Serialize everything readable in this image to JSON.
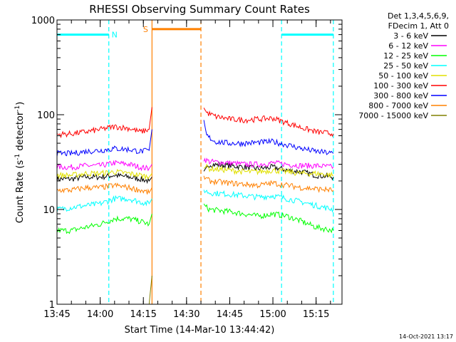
{
  "chart_data": {
    "type": "line",
    "title": "RHESSI Observing Summary Count Rates",
    "xlabel": "Start Time (14-Mar-10 13:44:42)",
    "ylabel_main": "Count Rate (s",
    "ylabel_sup1": "-1",
    "ylabel_mid": " detector",
    "ylabel_sup2": "-1",
    "ylabel_end": ")",
    "yscale": "log",
    "ylim": [
      1,
      1000
    ],
    "xlim": [
      "13:45",
      "15:24"
    ],
    "xticks": [
      "13:45",
      "14:00",
      "14:15",
      "14:30",
      "14:45",
      "15:00",
      "15:15"
    ],
    "yticks": [
      "1",
      "10",
      "100",
      "1000"
    ],
    "legend_header": [
      "Det 1,3,4,5,6,9,",
      "FDecim 1, Att 0"
    ],
    "series": [
      {
        "name": "3 - 6 keV",
        "color": "#000000",
        "segments": [
          {
            "x": [
              "13:45",
              "13:50",
              "13:55",
              "14:00",
              "14:05",
              "14:10",
              "14:14",
              "14:17",
              "14:18"
            ],
            "y": [
              21,
              21,
              22,
              22,
              23,
              22,
              21,
              20,
              22
            ]
          },
          {
            "x": [
              "14:36",
              "14:38",
              "14:45",
              "14:50",
              "14:55",
              "15:00",
              "15:05",
              "15:10",
              "15:15",
              "15:21"
            ],
            "y": [
              24,
              30,
              29,
              28,
              27,
              28,
              26,
              25,
              23,
              22
            ]
          }
        ]
      },
      {
        "name": "6 - 12 keV",
        "color": "#ff00ff",
        "segments": [
          {
            "x": [
              "13:45",
              "13:50",
              "13:55",
              "14:00",
              "14:05",
              "14:10",
              "14:14",
              "14:17",
              "14:18"
            ],
            "y": [
              28,
              28,
              29,
              29,
              31,
              30,
              28,
              27,
              30
            ]
          },
          {
            "x": [
              "14:36",
              "14:38",
              "14:45",
              "14:50",
              "14:55",
              "15:00",
              "15:05",
              "15:10",
              "15:15",
              "15:21"
            ],
            "y": [
              34,
              32,
              31,
              30,
              30,
              31,
              30,
              29,
              29,
              28
            ]
          }
        ]
      },
      {
        "name": "12 - 25 keV",
        "color": "#00ff00",
        "segments": [
          {
            "x": [
              "13:45",
              "13:50",
              "13:55",
              "14:00",
              "14:05",
              "14:10",
              "14:14",
              "14:17",
              "14:18"
            ],
            "y": [
              6,
              6,
              6.5,
              7,
              8,
              8,
              7.5,
              7,
              9
            ]
          },
          {
            "x": [
              "14:36",
              "14:38",
              "14:45",
              "14:50",
              "14:55",
              "15:00",
              "15:05",
              "15:10",
              "15:15",
              "15:21"
            ],
            "y": [
              11,
              10,
              9.5,
              9,
              8.5,
              9,
              8.5,
              7.5,
              6.5,
              6
            ]
          }
        ]
      },
      {
        "name": "25 - 50 keV",
        "color": "#00ffff",
        "segments": [
          {
            "x": [
              "13:45",
              "13:50",
              "13:55",
              "14:00",
              "14:05",
              "14:10",
              "14:14",
              "14:17",
              "14:18"
            ],
            "y": [
              10,
              10.5,
              11,
              11.5,
              13,
              13,
              12,
              11.5,
              13
            ]
          },
          {
            "x": [
              "14:36",
              "14:38",
              "14:45",
              "14:50",
              "14:55",
              "15:00",
              "15:05",
              "15:10",
              "15:15",
              "15:21"
            ],
            "y": [
              16,
              15,
              14.5,
              14,
              13.5,
              14,
              13,
              12,
              11,
              10
            ]
          }
        ]
      },
      {
        "name": "50 - 100 keV",
        "color": "#e0e000",
        "segments": [
          {
            "x": [
              "13:45",
              "13:50",
              "13:55",
              "14:00",
              "14:05",
              "14:10",
              "14:14",
              "14:17",
              "14:18"
            ],
            "y": [
              23,
              23,
              24,
              24,
              25,
              24,
              23,
              22,
              24
            ]
          },
          {
            "x": [
              "14:36",
              "14:38",
              "14:45",
              "14:50",
              "14:55",
              "15:00",
              "15:05",
              "15:10",
              "15:15",
              "15:21"
            ],
            "y": [
              29,
              27,
              26,
              25,
              25,
              26,
              25,
              24,
              24,
              23
            ]
          }
        ]
      },
      {
        "name": "100 - 300 keV",
        "color": "#ff0000",
        "segments": [
          {
            "x": [
              "13:45",
              "13:50",
              "13:55",
              "14:00",
              "14:05",
              "14:10",
              "14:14",
              "14:17",
              "14:18"
            ],
            "y": [
              62,
              63,
              66,
              70,
              75,
              72,
              66,
              70,
              120
            ]
          },
          {
            "x": [
              "14:36",
              "14:37",
              "14:40",
              "14:45",
              "14:50",
              "14:55",
              "15:00",
              "15:05",
              "15:10",
              "15:15",
              "15:21"
            ],
            "y": [
              118,
              105,
              96,
              90,
              88,
              90,
              92,
              82,
              73,
              66,
              63
            ]
          }
        ]
      },
      {
        "name": "300 - 800 keV",
        "color": "#0000ff",
        "segments": [
          {
            "x": [
              "13:45",
              "13:50",
              "13:55",
              "14:00",
              "14:05",
              "14:10",
              "14:14",
              "14:17",
              "14:18"
            ],
            "y": [
              39,
              39,
              41,
              42,
              44,
              43,
              41,
              42,
              70
            ]
          },
          {
            "x": [
              "14:36",
              "14:37",
              "14:40",
              "14:45",
              "14:50",
              "14:55",
              "15:00",
              "15:05",
              "15:10",
              "15:15",
              "15:21"
            ],
            "y": [
              88,
              60,
              52,
              50,
              50,
              51,
              52,
              48,
              44,
              41,
              39
            ]
          }
        ]
      },
      {
        "name": "800 - 7000 keV",
        "color": "#ff8000",
        "segments": [
          {
            "x": [
              "13:45",
              "13:50",
              "13:55",
              "14:00",
              "14:05",
              "14:10",
              "14:14",
              "14:17",
              "14:18"
            ],
            "y": [
              16,
              16,
              17,
              17,
              18,
              17,
              16,
              15,
              17
            ]
          },
          {
            "x": [
              "14:36",
              "14:38",
              "14:45",
              "14:50",
              "14:55",
              "15:00",
              "15:05",
              "15:10",
              "15:15",
              "15:21"
            ],
            "y": [
              22,
              20,
              19,
              18.5,
              18,
              19,
              18,
              17,
              16.5,
              16
            ]
          }
        ]
      },
      {
        "name": "7000 - 15000 keV",
        "color": "#808000",
        "segments": [
          {
            "x": [
              "14:17",
              "14:18"
            ],
            "y": [
              1,
              2
            ]
          }
        ]
      }
    ],
    "flags": [
      {
        "label": "N",
        "color": "#00ffff",
        "level": 700,
        "intervals": [
          [
            "13:45",
            "14:03"
          ],
          [
            "15:03",
            "15:21"
          ]
        ]
      },
      {
        "label": "S",
        "color": "#ff8000",
        "level": 800,
        "intervals": [
          [
            "14:18",
            "14:35"
          ]
        ]
      }
    ],
    "vlines": [
      {
        "x": "14:03",
        "color": "#00ffff",
        "style": "dashed"
      },
      {
        "x": "15:03",
        "color": "#00ffff",
        "style": "dashed"
      },
      {
        "x": "15:21",
        "color": "#00ffff",
        "style": "dashed"
      },
      {
        "x": "14:18",
        "color": "#ff8000",
        "style": "solid"
      },
      {
        "x": "14:35",
        "color": "#ff8000",
        "style": "dashed"
      }
    ]
  },
  "footer": {
    "timestamp": "14-Oct-2021 13:17"
  }
}
